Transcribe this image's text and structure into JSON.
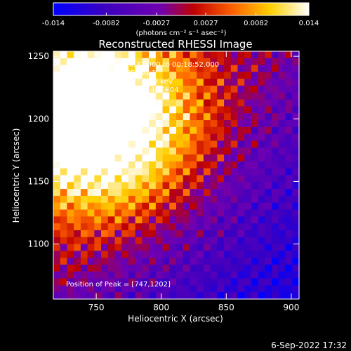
{
  "chart_data": {
    "type": "heatmap",
    "title": "Reconstructed RHESSI Image",
    "xlabel": "Heliocentric X (arcsec)",
    "ylabel": "Heliocentric Y (arcsec)",
    "xlim": [
      717,
      906
    ],
    "ylim": [
      1056,
      1254
    ],
    "x_ticks": [
      750,
      800,
      850,
      900
    ],
    "y_ticks": [
      1100,
      1150,
      1200,
      1250
    ],
    "colorbar": {
      "min": -0.014,
      "max": 0.014,
      "tick_values": [
        -0.014,
        -0.0082,
        -0.0027,
        0.0027,
        0.0082,
        0.014
      ],
      "tick_labels": [
        "-0.014",
        "-0.0082",
        "-0.0027",
        "0.0027",
        "0.0082",
        "0.014"
      ],
      "unit_label": "(photons cm⁻² s⁻¹ asec⁻²)",
      "colors": [
        "#0000ff",
        "#3c00c0",
        "#7000b0",
        "#c00000",
        "#ff6000",
        "#ffd000",
        "#ffffff"
      ]
    },
    "annotations": [
      "24-Sep-2011 00:14:32.000 to 00:18:52.000",
      "Detectors: 3F 6F 8F, Att 1",
      "Energy Range: 12.0 - 25.0 keV",
      "Clean     Total counts: 1.40E+04"
    ],
    "peak": {
      "label": "Position of Peak = [747,1202]",
      "x": 747,
      "y": 1202
    },
    "grid": false,
    "legend": "none"
  },
  "footer_timestamp": "6-Sep-2022 17:32"
}
